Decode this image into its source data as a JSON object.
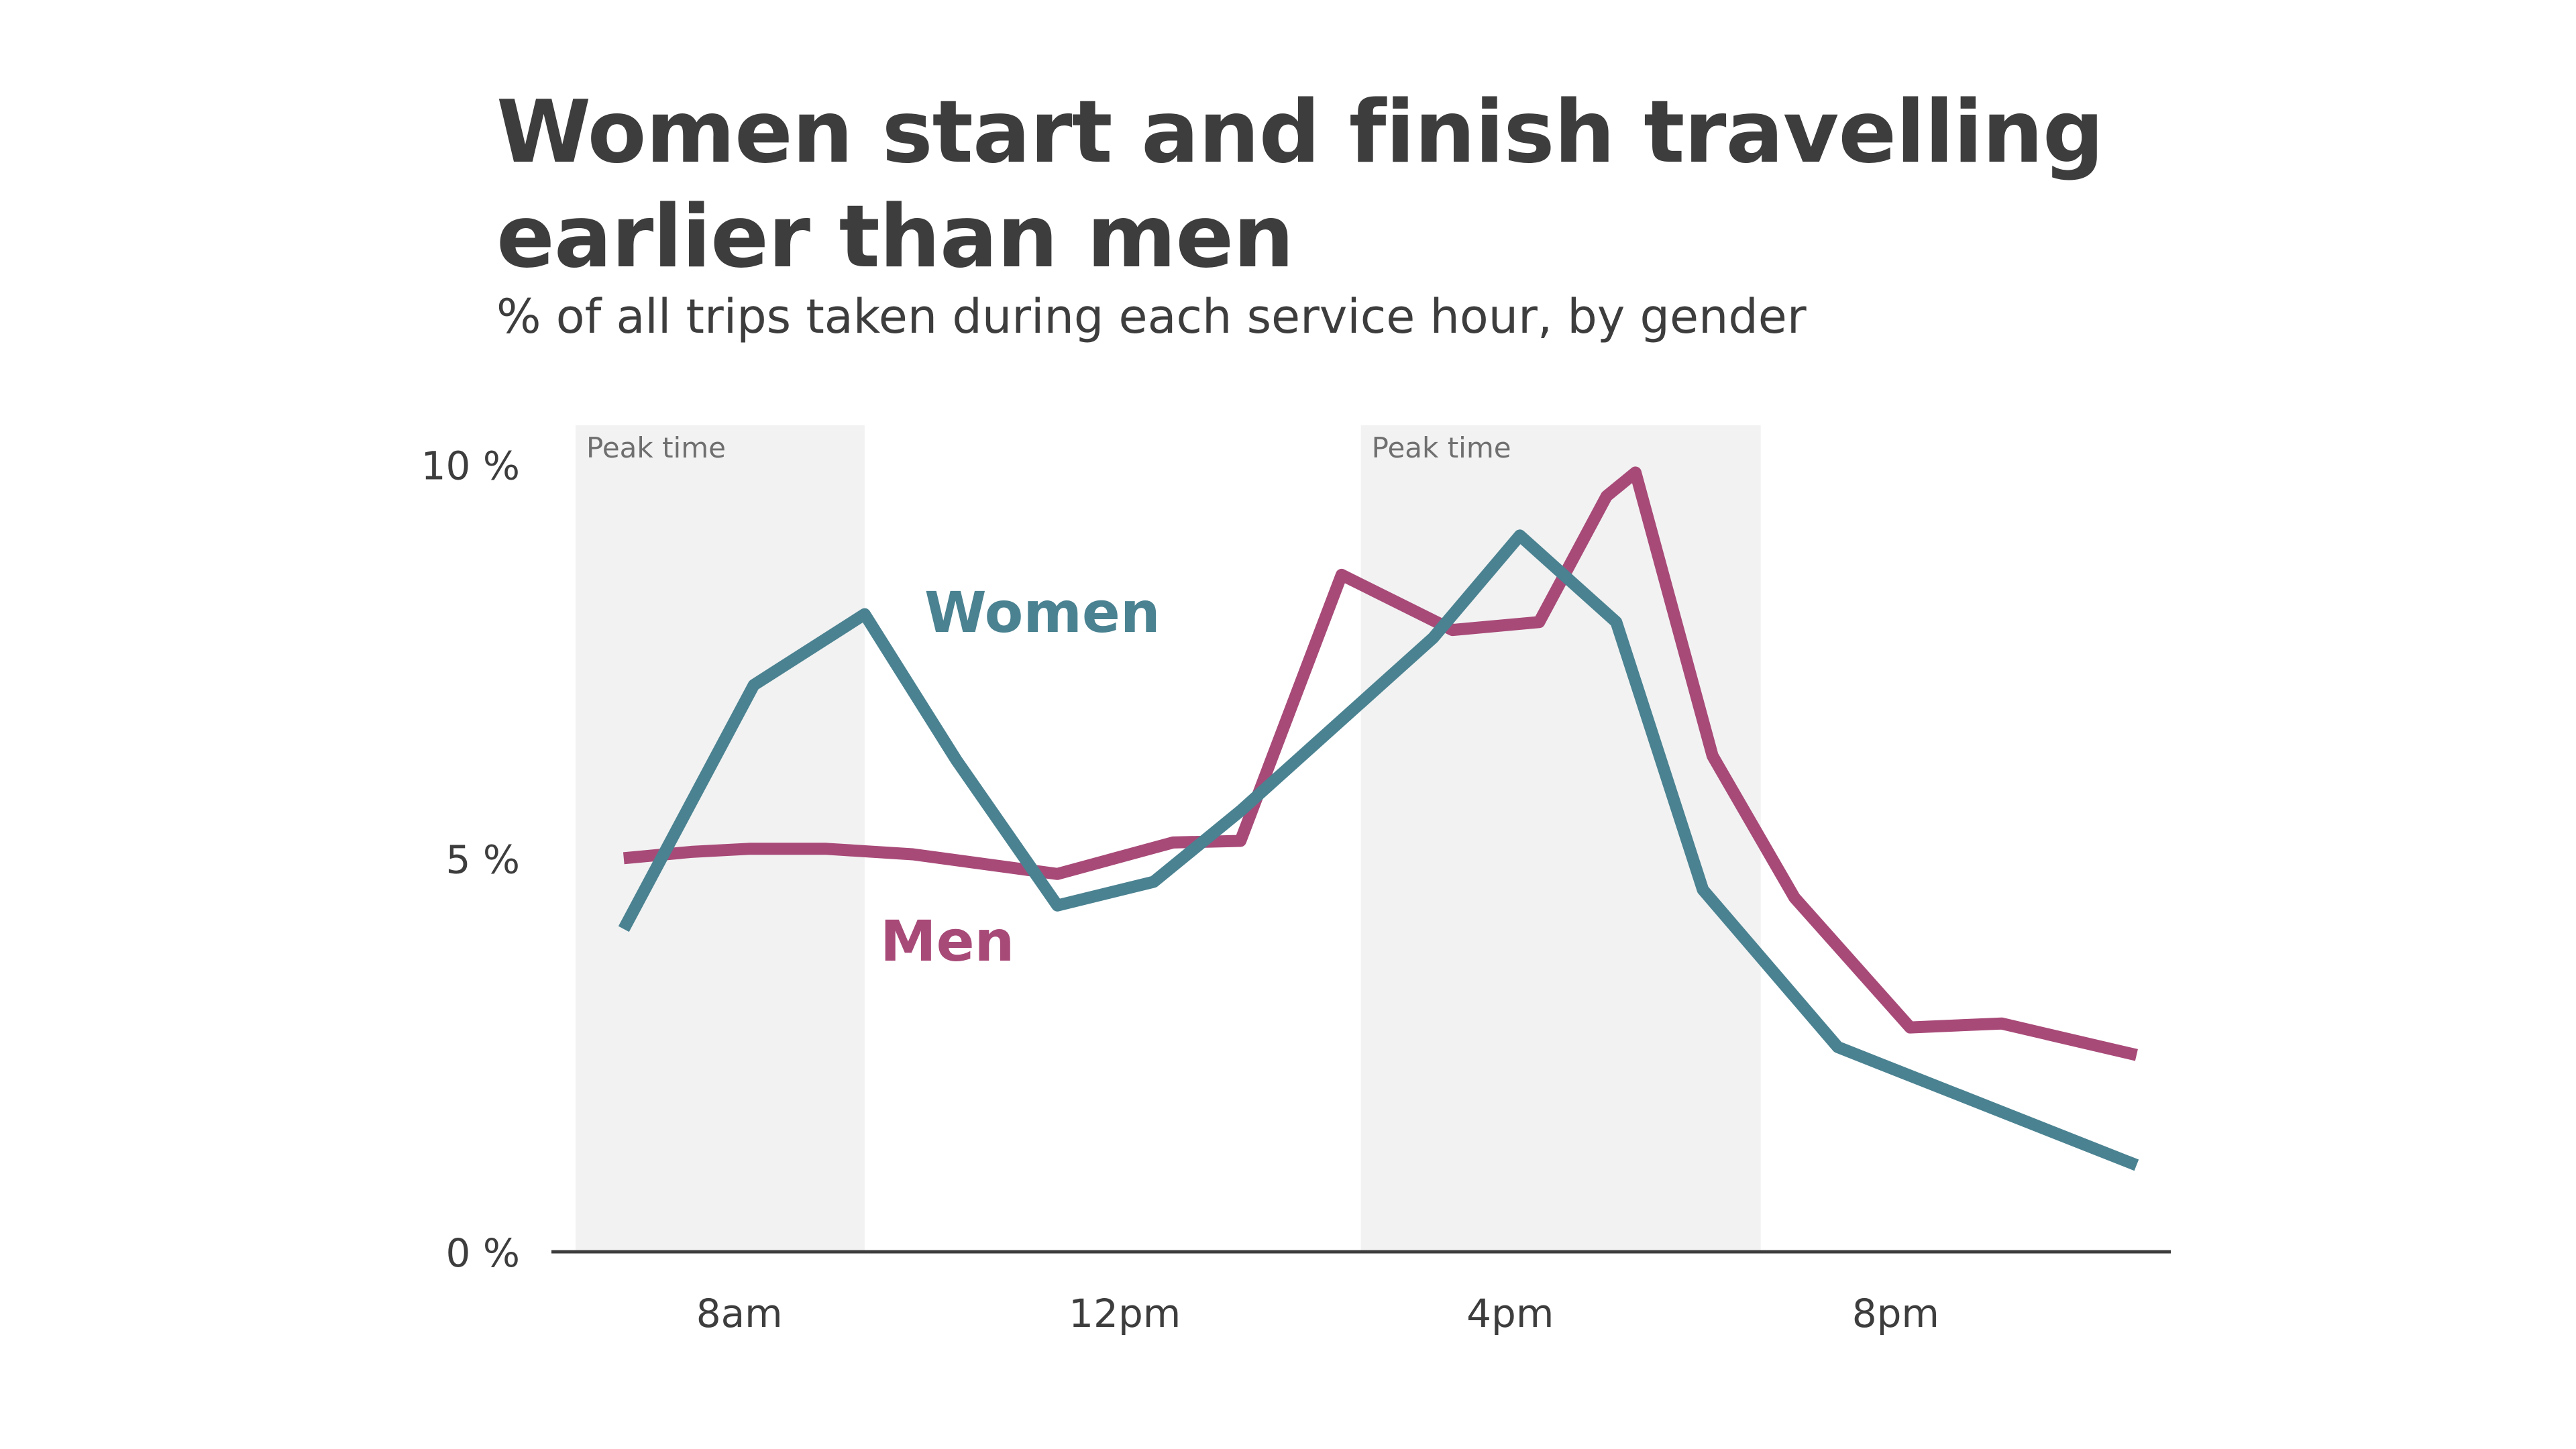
{
  "header": {
    "title": "Women start and finish travelling earlier than men",
    "subtitle": "% of all trips taken during each service hour, by gender"
  },
  "chart_data": {
    "type": "line",
    "title": "Women start and finish travelling earlier than men",
    "subtitle": "% of all trips taken during each service hour, by gender",
    "xlabel": "",
    "ylabel": "",
    "x_ticks": [
      {
        "label": "8am",
        "hour": 8
      },
      {
        "label": "12pm",
        "hour": 12
      },
      {
        "label": "4pm",
        "hour": 16
      },
      {
        "label": "8pm",
        "hour": 20
      }
    ],
    "y_ticks": [
      {
        "label": "0 %",
        "value": 0
      },
      {
        "label": "5 %",
        "value": 5
      },
      {
        "label": "10 %",
        "value": 10
      }
    ],
    "xlim": [
      6.3,
      22.8
    ],
    "ylim": [
      0,
      10.5
    ],
    "grid": false,
    "bands": [
      {
        "label": "Peak time",
        "start": 6.3,
        "end": 9.3
      },
      {
        "label": "Peak time",
        "start": 14.45,
        "end": 18.6
      }
    ],
    "series": [
      {
        "name": "Women",
        "color": "#4a8291",
        "points": [
          [
            6.8,
            4.1
          ],
          [
            8.15,
            7.2
          ],
          [
            9.3,
            8.1
          ],
          [
            10.25,
            6.25
          ],
          [
            11.3,
            4.4
          ],
          [
            12.3,
            4.7
          ],
          [
            13.2,
            5.6
          ],
          [
            15.2,
            7.8
          ],
          [
            16.1,
            9.1
          ],
          [
            17.1,
            8.0
          ],
          [
            18.0,
            4.6
          ],
          [
            19.4,
            2.6
          ],
          [
            22.5,
            1.1
          ]
        ]
      },
      {
        "name": "Men",
        "color": "#a84a78",
        "points": [
          [
            6.8,
            5.0
          ],
          [
            7.5,
            5.08
          ],
          [
            8.1,
            5.12
          ],
          [
            8.9,
            5.12
          ],
          [
            9.8,
            5.05
          ],
          [
            11.3,
            4.8
          ],
          [
            12.5,
            5.2
          ],
          [
            13.2,
            5.22
          ],
          [
            14.25,
            8.6
          ],
          [
            15.4,
            7.9
          ],
          [
            16.3,
            8.0
          ],
          [
            17.0,
            9.6
          ],
          [
            17.3,
            9.9
          ],
          [
            18.1,
            6.3
          ],
          [
            18.95,
            4.5
          ],
          [
            20.15,
            2.85
          ],
          [
            21.1,
            2.9
          ],
          [
            22.5,
            2.5
          ]
        ]
      }
    ]
  }
}
